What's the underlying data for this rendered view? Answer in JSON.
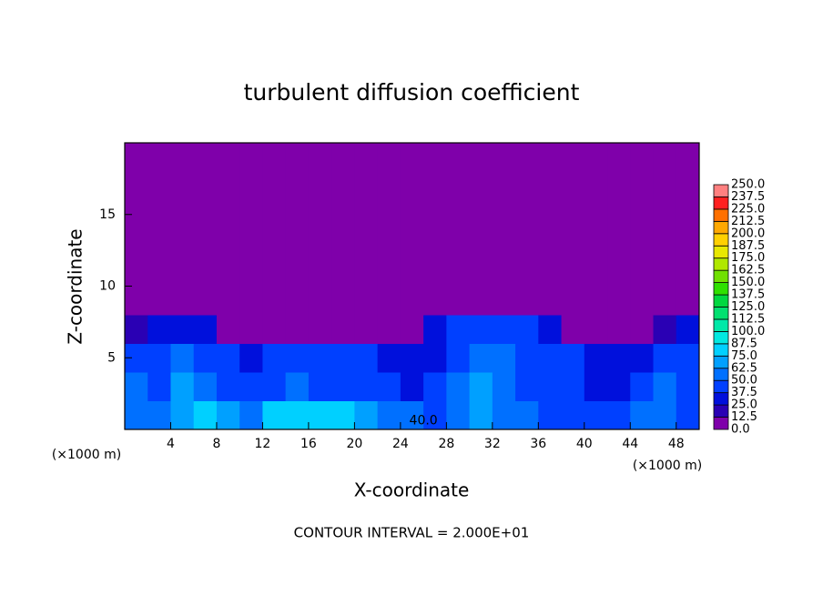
{
  "chart_data": {
    "type": "heatmap",
    "title": "turbulent diffusion coefficient",
    "xlabel": "X-coordinate",
    "ylabel": "Z-coordinate",
    "xunit": "(×1000 m)",
    "yunit": "(×1000 m)",
    "annotation": "CONTOUR INTERVAL = 2.000E+01",
    "contour_label": "40.0",
    "xlim": [
      0,
      50
    ],
    "ylim": [
      0,
      20
    ],
    "xticks": [
      4,
      8,
      12,
      16,
      20,
      24,
      28,
      32,
      36,
      40,
      44,
      48
    ],
    "yticks": [
      5,
      10,
      15
    ],
    "x": [
      1,
      3,
      5,
      7,
      9,
      11,
      13,
      15,
      17,
      19,
      21,
      23,
      25,
      27,
      29,
      31,
      33,
      35,
      37,
      39,
      41,
      43,
      45,
      47,
      49
    ],
    "z": [
      1,
      3,
      5,
      7,
      9,
      11,
      13,
      15,
      17,
      19
    ],
    "values": [
      [
        50,
        60,
        70,
        75,
        65,
        60,
        75,
        80,
        80,
        75,
        70,
        60,
        50,
        45,
        60,
        70,
        50,
        60,
        45,
        40,
        40,
        45,
        60,
        55,
        40
      ],
      [
        55,
        45,
        65,
        50,
        45,
        40,
        45,
        50,
        45,
        45,
        40,
        40,
        35,
        40,
        60,
        65,
        55,
        45,
        40,
        40,
        35,
        35,
        45,
        60,
        40
      ],
      [
        40,
        40,
        50,
        45,
        40,
        35,
        40,
        45,
        40,
        40,
        40,
        35,
        30,
        35,
        45,
        60,
        50,
        45,
        40,
        40,
        35,
        35,
        35,
        45,
        40
      ],
      [
        20,
        30,
        30,
        25,
        10,
        5,
        5,
        5,
        5,
        5,
        5,
        5,
        5,
        30,
        40,
        45,
        40,
        40,
        30,
        10,
        5,
        5,
        5,
        20,
        25
      ],
      [
        0,
        0,
        0,
        0,
        0,
        0,
        0,
        0,
        0,
        0,
        0,
        0,
        0,
        0,
        5,
        5,
        0,
        0,
        0,
        0,
        0,
        0,
        0,
        0,
        0
      ],
      [
        0,
        0,
        0,
        0,
        0,
        0,
        0,
        0,
        0,
        0,
        0,
        0,
        0,
        0,
        0,
        0,
        0,
        0,
        0,
        0,
        0,
        0,
        0,
        0,
        0
      ],
      [
        0,
        0,
        0,
        0,
        0,
        0,
        0,
        0,
        0,
        0,
        0,
        0,
        0,
        0,
        0,
        0,
        0,
        0,
        0,
        0,
        0,
        0,
        0,
        0,
        0
      ],
      [
        0,
        0,
        0,
        0,
        0,
        0,
        0,
        0,
        0,
        0,
        0,
        0,
        0,
        0,
        0,
        0,
        0,
        0,
        0,
        0,
        0,
        0,
        0,
        0,
        0
      ],
      [
        0,
        0,
        0,
        0,
        0,
        0,
        0,
        0,
        0,
        0,
        0,
        0,
        0,
        0,
        0,
        0,
        0,
        0,
        0,
        0,
        0,
        0,
        0,
        0,
        0
      ],
      [
        0,
        0,
        0,
        0,
        0,
        0,
        0,
        0,
        0,
        0,
        0,
        0,
        0,
        0,
        0,
        0,
        0,
        0,
        0,
        0,
        0,
        0,
        0,
        0,
        0
      ]
    ],
    "colorbar_ticks": [
      {
        "value": 0,
        "label": "0.0"
      },
      {
        "value": 12.5,
        "label": "12.5"
      },
      {
        "value": 25,
        "label": "25.0"
      },
      {
        "value": 37.5,
        "label": "37.5"
      },
      {
        "value": 50,
        "label": "50.0"
      },
      {
        "value": 62.5,
        "label": "62.5"
      },
      {
        "value": 75,
        "label": "75.0"
      },
      {
        "value": 87.5,
        "label": "87.5"
      },
      {
        "value": 100,
        "label": "100.0"
      },
      {
        "value": 112.5,
        "label": "112.5"
      },
      {
        "value": 125,
        "label": "125.0"
      },
      {
        "value": 137.5,
        "label": "137.5"
      },
      {
        "value": 150,
        "label": "150.0"
      },
      {
        "value": 162.5,
        "label": "162.5"
      },
      {
        "value": 175,
        "label": "175.0"
      },
      {
        "value": 187.5,
        "label": "187.5"
      },
      {
        "value": 200,
        "label": "200.0"
      },
      {
        "value": 212.5,
        "label": "212.5"
      },
      {
        "value": 225,
        "label": "225.0"
      },
      {
        "value": 237.5,
        "label": "237.5"
      },
      {
        "value": 250,
        "label": "250.0"
      }
    ],
    "colors": [
      "#7f00aa",
      "#2a00b4",
      "#0010dc",
      "#0040ff",
      "#0070ff",
      "#00a0ff",
      "#00d0ff",
      "#00e8e0",
      "#00e8a8",
      "#00e070",
      "#00d840",
      "#30e000",
      "#70e000",
      "#b0e800",
      "#e8e800",
      "#ffd000",
      "#ffa800",
      "#ff7000",
      "#ff2020",
      "#ff8080"
    ]
  }
}
